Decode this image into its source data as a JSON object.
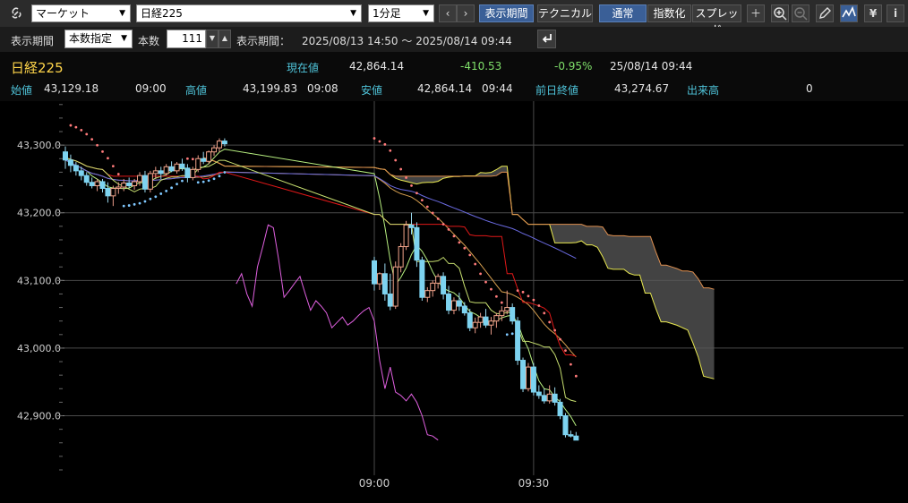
{
  "toolbar": {
    "market_select": "マーケット",
    "symbol_select": "日経225",
    "interval_select": "1分足",
    "period_button": "表示期間",
    "technical_button": "テクニカル",
    "normal_button": "通常",
    "index_button": "指数化",
    "spread_button": "スプレッド",
    "yen_icon_text": "¥",
    "info_icon_text": "i"
  },
  "period": {
    "label": "表示期間",
    "mode": "本数指定",
    "count_label": "本数",
    "count": "111",
    "range_label": "表示期間：",
    "range": "2025/08/13 14:50 〜 2025/08/14 09:44"
  },
  "quote": {
    "name": "日経225",
    "current_label": "現在値",
    "current": "42,864.14",
    "change": "-410.53",
    "change_pct": "-0.95%",
    "datetime": "25/08/14 09:44",
    "open_label": "始値",
    "open": "43,129.18",
    "open_time": "09:00",
    "high_label": "高値",
    "high": "43,199.83",
    "high_time": "09:08",
    "low_label": "安値",
    "low": "42,864.14",
    "low_time": "09:44",
    "prev_close_label": "前日終値",
    "prev_close": "43,274.67",
    "volume_label": "出来高",
    "volume": "0"
  },
  "colors": {
    "up_candle": "#f2a48a",
    "down_candle": "#7dd3f0",
    "sma_short": "#b8f080",
    "sma_mid": "#d8a050",
    "sma_long": "#6a6ae0",
    "kijun": "#e01818",
    "tenkan": "#f0a030",
    "span_a": "#e8e850",
    "span_b": "#e09050",
    "cloud": "#5a5a5a",
    "chikou": "#e060e0",
    "sar_above": "#ff7b7b",
    "sar_below": "#7fc8ff",
    "grid": "#4a4a4a"
  },
  "chart_data": {
    "type": "candlestick",
    "yticks": [
      42900,
      43000,
      43100,
      43200,
      43300
    ],
    "ytick_labels": [
      "42,900.0",
      "43,000.0",
      "43,100.0",
      "43,200.0",
      "43,300.0"
    ],
    "ylim": [
      42820,
      43365
    ],
    "xtick_labels": [
      "09:00",
      "09:30"
    ],
    "candles_previous_session": [
      [
        43290,
        43298,
        43265,
        43278
      ],
      [
        43278,
        43286,
        43260,
        43270
      ],
      [
        43270,
        43275,
        43255,
        43262
      ],
      [
        43262,
        43268,
        43248,
        43255
      ],
      [
        43255,
        43260,
        43240,
        43245
      ],
      [
        43245,
        43252,
        43236,
        43240
      ],
      [
        43240,
        43250,
        43232,
        43246
      ],
      [
        43246,
        43250,
        43230,
        43236
      ],
      [
        43236,
        43245,
        43215,
        43225
      ],
      [
        43225,
        43240,
        43210,
        43236
      ],
      [
        43236,
        43245,
        43228,
        43238
      ],
      [
        43238,
        43250,
        43232,
        43244
      ],
      [
        43244,
        43252,
        43236,
        43240
      ],
      [
        43240,
        43250,
        43234,
        43246
      ],
      [
        43246,
        43260,
        43240,
        43255
      ],
      [
        43255,
        43262,
        43230,
        43235
      ],
      [
        43235,
        43262,
        43230,
        43258
      ],
      [
        43258,
        43268,
        43250,
        43262
      ],
      [
        43262,
        43268,
        43250,
        43258
      ],
      [
        43258,
        43272,
        43255,
        43268
      ],
      [
        43268,
        43276,
        43260,
        43262
      ],
      [
        43262,
        43275,
        43258,
        43272
      ],
      [
        43272,
        43280,
        43262,
        43266
      ],
      [
        43266,
        43272,
        43245,
        43252
      ],
      [
        43252,
        43268,
        43248,
        43264
      ],
      [
        43264,
        43285,
        43260,
        43280
      ],
      [
        43280,
        43290,
        43272,
        43276
      ],
      [
        43276,
        43292,
        43272,
        43290
      ],
      [
        43290,
        43300,
        43284,
        43296
      ],
      [
        43296,
        43310,
        43290,
        43306
      ],
      [
        43306,
        43310,
        43298,
        43302
      ]
    ],
    "candles_session": [
      [
        43129,
        43135,
        43085,
        43095
      ],
      [
        43095,
        43112,
        43086,
        43110
      ],
      [
        43110,
        43125,
        43070,
        43080
      ],
      [
        43080,
        43110,
        43056,
        43062
      ],
      [
        43062,
        43128,
        43058,
        43120
      ],
      [
        43120,
        43155,
        43112,
        43150
      ],
      [
        43150,
        43188,
        43145,
        43182
      ],
      [
        43182,
        43200,
        43168,
        43178
      ],
      [
        43178,
        43186,
        43120,
        43130
      ],
      [
        43130,
        43135,
        43070,
        43075
      ],
      [
        43075,
        43090,
        43068,
        43085
      ],
      [
        43085,
        43100,
        43076,
        43096
      ],
      [
        43096,
        43110,
        43088,
        43106
      ],
      [
        43106,
        43112,
        43072,
        43080
      ],
      [
        43080,
        43092,
        43050,
        43056
      ],
      [
        43056,
        43075,
        43050,
        43070
      ],
      [
        43070,
        43082,
        43055,
        43062
      ],
      [
        43062,
        43068,
        43048,
        43052
      ],
      [
        43052,
        43058,
        43025,
        43030
      ],
      [
        43030,
        43045,
        43022,
        43038
      ],
      [
        43038,
        43052,
        43030,
        43046
      ],
      [
        43046,
        43058,
        43030,
        43034
      ],
      [
        43034,
        43046,
        43020,
        43040
      ],
      [
        43040,
        43052,
        43030,
        43048
      ],
      [
        43048,
        43062,
        43040,
        43055
      ],
      [
        43055,
        43085,
        43050,
        43060
      ],
      [
        43060,
        43066,
        43035,
        43040
      ],
      [
        43040,
        43046,
        42975,
        42982
      ],
      [
        42982,
        42986,
        42935,
        42940
      ],
      [
        42940,
        42978,
        42936,
        42972
      ],
      [
        42972,
        42978,
        42930,
        42935
      ],
      [
        42935,
        42945,
        42925,
        42930
      ],
      [
        42930,
        42940,
        42918,
        42922
      ],
      [
        42922,
        42945,
        42918,
        42932
      ],
      [
        42932,
        42942,
        42915,
        42920
      ],
      [
        42920,
        42925,
        42895,
        42900
      ],
      [
        42900,
        42904,
        42868,
        42872
      ],
      [
        42872,
        42878,
        42868,
        42870
      ],
      [
        42870,
        42876,
        42864,
        42864
      ]
    ]
  }
}
